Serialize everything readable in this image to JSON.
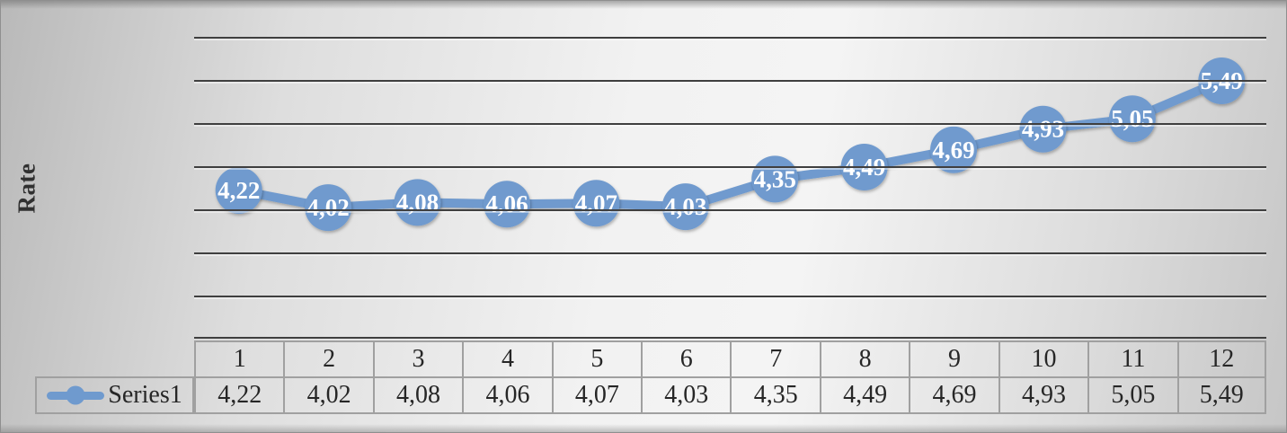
{
  "chart_data": {
    "type": "line",
    "title": "",
    "xlabel": "",
    "ylabel": "Rate",
    "categories": [
      "1",
      "2",
      "3",
      "4",
      "5",
      "6",
      "7",
      "8",
      "9",
      "10",
      "11",
      "12"
    ],
    "series": [
      {
        "name": "Series1",
        "values": [
          4.22,
          4.02,
          4.08,
          4.06,
          4.07,
          4.03,
          4.35,
          4.49,
          4.69,
          4.93,
          5.05,
          5.49
        ],
        "labels": [
          "4,22",
          "4,02",
          "4,08",
          "4,06",
          "4,07",
          "4,03",
          "4,35",
          "4,49",
          "4,69",
          "4,93",
          "5,05",
          "5,49"
        ]
      }
    ],
    "ylim": [
      2.5,
      6.0
    ],
    "y_major_unit": 0.5,
    "y_tick_labels_shown": false,
    "grid": true,
    "legend_position": "bottom-table-left",
    "data_table_shown": true,
    "marker_style": "large-circle-with-label",
    "accent_color": "#6f9ace",
    "marker_label_color": "#ffffff",
    "gridline_color": "#3f3f3f"
  }
}
